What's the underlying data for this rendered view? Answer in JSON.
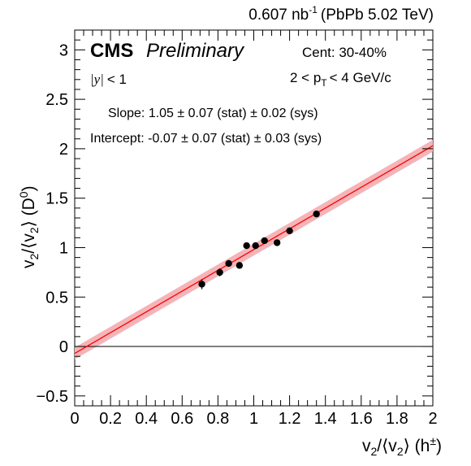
{
  "chart_data": {
    "type": "scatter",
    "header": {
      "lumi_value": "0.607 nb",
      "lumi_exp": "-1",
      "system": "(PbPb 5.02 TeV)"
    },
    "cms_label": "CMS",
    "preliminary_label": "Preliminary",
    "rapidity": {
      "var": "|y|",
      "cut": "< 1"
    },
    "centrality": "Cent: 30-40%",
    "pt_cut": {
      "pre": "2 < p",
      "sub": "T",
      "post": "< 4 GeV/c"
    },
    "slope_text": "Slope: 1.05 ± 0.07 (stat) ± 0.02 (sys)",
    "intercept_text": "Intercept: -0.07 ± 0.07 (stat) ± 0.03 (sys)",
    "xlabel": {
      "v": "v",
      "sub": "2",
      "mid": "/⟨v",
      "sub2": "2",
      "post": "⟩ (h",
      "sup": "±",
      "end": ")"
    },
    "ylabel": {
      "v": "v",
      "sub": "2",
      "mid": "/⟨v",
      "sub2": "2",
      "post": "⟩ (D",
      "sup": "0",
      "end": ")"
    },
    "xlim": [
      0,
      2
    ],
    "ylim": [
      -0.6,
      3.2
    ],
    "x_ticks": [
      "0",
      "0.2",
      "0.4",
      "0.6",
      "0.8",
      "1",
      "1.2",
      "1.4",
      "1.6",
      "1.8",
      "2"
    ],
    "y_ticks": [
      "−0.5",
      "0",
      "0.5",
      "1",
      "1.5",
      "2",
      "2.5",
      "3"
    ],
    "fit": {
      "slope": 1.05,
      "intercept": -0.07,
      "band_halfwidth": 0.06,
      "color": "#ff0000",
      "band_color": "#f4b4b8"
    },
    "zero_line": 0,
    "points": [
      {
        "x": 0.71,
        "y": 0.63,
        "err": 0.05
      },
      {
        "x": 0.81,
        "y": 0.75,
        "err": 0.04
      },
      {
        "x": 0.86,
        "y": 0.84,
        "err": 0.03
      },
      {
        "x": 0.92,
        "y": 0.82,
        "err": 0.03
      },
      {
        "x": 0.96,
        "y": 1.02,
        "err": 0.03
      },
      {
        "x": 1.01,
        "y": 1.02,
        "err": 0.03
      },
      {
        "x": 1.06,
        "y": 1.07,
        "err": 0.03
      },
      {
        "x": 1.13,
        "y": 1.05,
        "err": 0.03
      },
      {
        "x": 1.2,
        "y": 1.17,
        "err": 0.03
      },
      {
        "x": 1.35,
        "y": 1.34,
        "err": 0.03
      }
    ]
  }
}
